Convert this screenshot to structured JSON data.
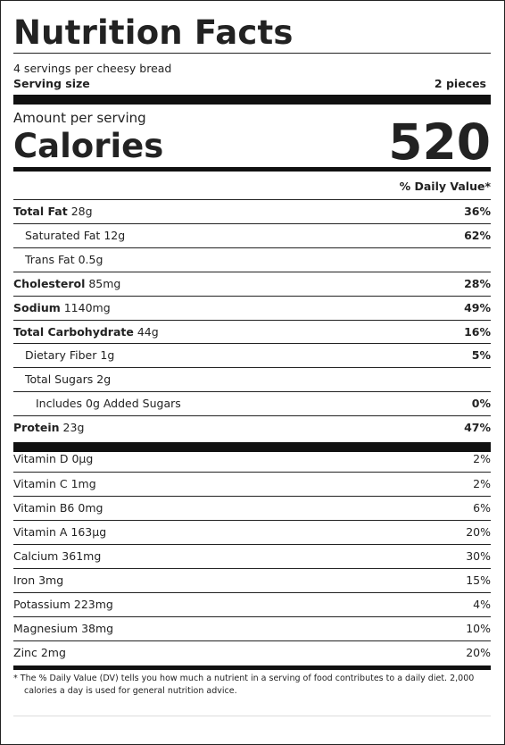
{
  "title": "Nutrition Facts",
  "servings_per": "4 servings per cheesy bread",
  "serving_size_label": "Serving size",
  "serving_size_value": "2 pieces",
  "amount_per_serving": "Amount per serving",
  "calories_label": "Calories",
  "calories_value": "520",
  "daily_value_header": "% Daily Value*",
  "nutrients": [
    {
      "name": "Total Fat",
      "amount": "28g",
      "dv": "36%"
    },
    {
      "name": "Saturated Fat",
      "amount": "12g",
      "dv": "62%"
    },
    {
      "name": "Trans Fat",
      "amount": "0.5g",
      "dv": ""
    },
    {
      "name": "Cholesterol",
      "amount": "85mg",
      "dv": "28%"
    },
    {
      "name": "Sodium",
      "amount": "1140mg",
      "dv": "49%"
    },
    {
      "name": "Total Carbohydrate",
      "amount": "44g",
      "dv": "16%"
    },
    {
      "name": "Dietary Fiber",
      "amount": "1g",
      "dv": "5%"
    },
    {
      "name": "Total Sugars",
      "amount": "2g",
      "dv": ""
    },
    {
      "name": "Includes 0g Added Sugars",
      "amount": "",
      "dv": "0%"
    },
    {
      "name": "Protein",
      "amount": "23g",
      "dv": "47%"
    }
  ],
  "vitamins": [
    {
      "name": "Vitamin D",
      "amount": "0µg",
      "dv": "2%"
    },
    {
      "name": "Vitamin C",
      "amount": "1mg",
      "dv": "2%"
    },
    {
      "name": "Vitamin B6",
      "amount": "0mg",
      "dv": "6%"
    },
    {
      "name": "Vitamin A",
      "amount": "163µg",
      "dv": "20%"
    },
    {
      "name": "Calcium",
      "amount": "361mg",
      "dv": "30%"
    },
    {
      "name": "Iron",
      "amount": "3mg",
      "dv": "15%"
    },
    {
      "name": "Potassium",
      "amount": "223mg",
      "dv": "4%"
    },
    {
      "name": "Magnesium",
      "amount": "38mg",
      "dv": "10%"
    },
    {
      "name": "Zinc",
      "amount": "2mg",
      "dv": "20%"
    }
  ],
  "footnote": "* The % Daily Value (DV) tells you how much a nutrient in a serving of food contributes to a daily diet. 2,000 calories a day is used for general nutrition advice."
}
